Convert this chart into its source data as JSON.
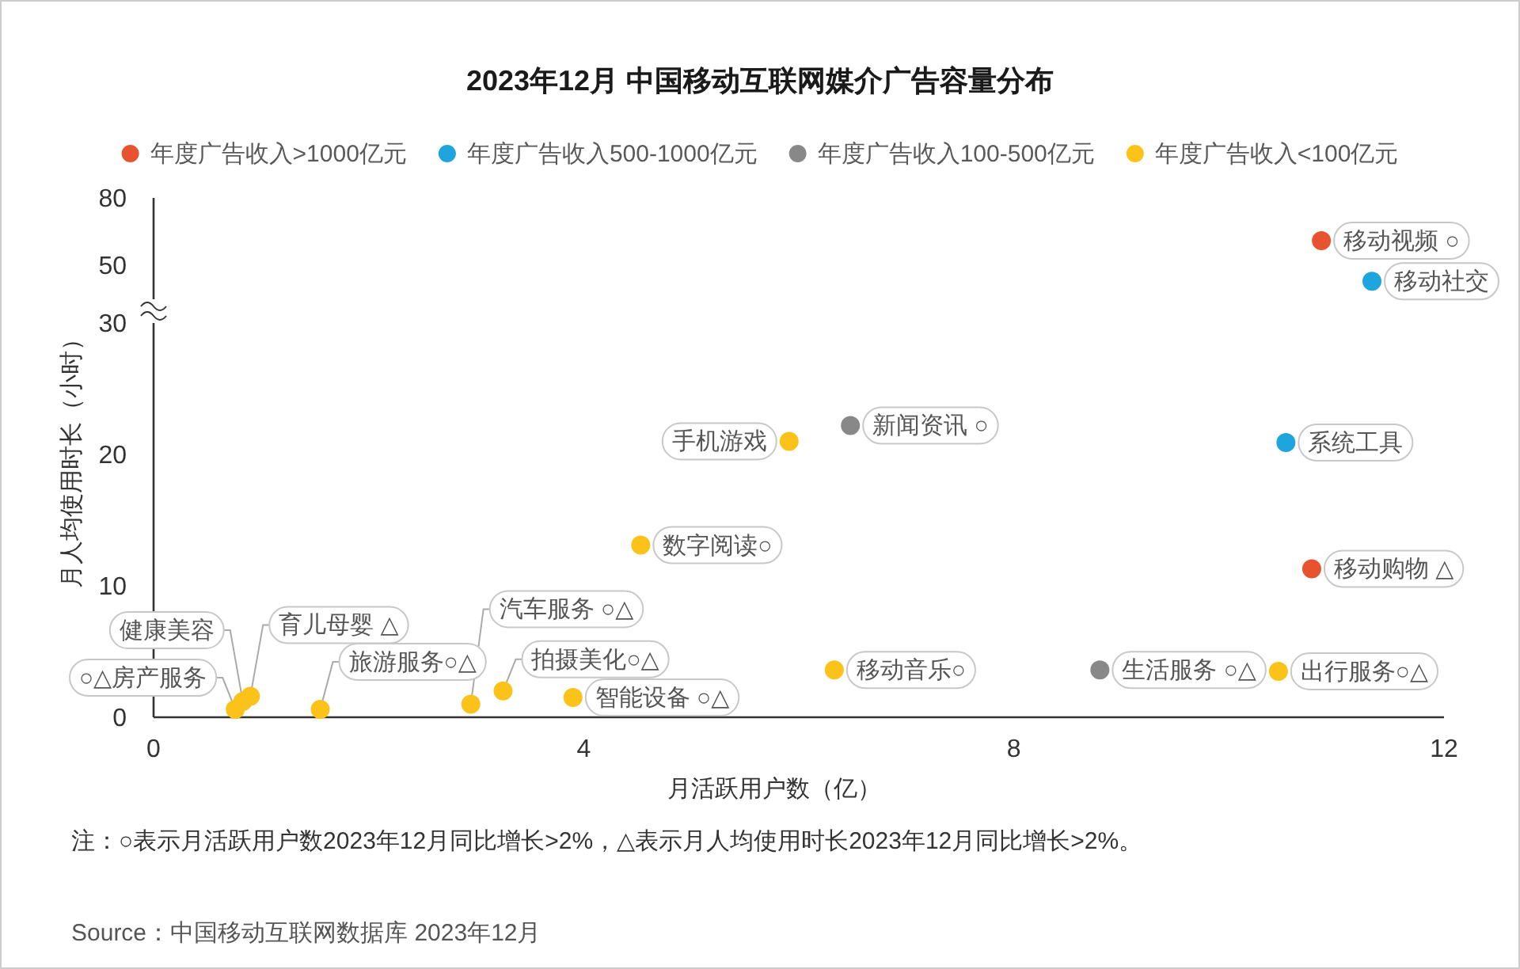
{
  "chart_data": [
    {
      "type": "scatter",
      "title": "2023年12月 中国移动互联网媒介广告容量分布",
      "xlim": [
        0,
        12
      ],
      "ylim": [
        35,
        80
      ],
      "yticks": [
        50,
        80
      ],
      "tick_labels": "y",
      "marker": "circle",
      "series": [
        {
          "color": "#e8532f",
          "x": [
            10.86
          ],
          "values": [
            61
          ],
          "value_labels": [
            "移动视频 ○"
          ]
        },
        {
          "color": "#1ea5dd",
          "x": [
            11.33
          ],
          "values": [
            43
          ],
          "value_labels": [
            "移动社交"
          ]
        }
      ]
    },
    {
      "type": "scatter",
      "xlabel": "月活跃用户数（亿）",
      "ylabel": "月人均使用时长（小时）",
      "xlim": [
        0,
        12
      ],
      "xticks": [
        0,
        4,
        8,
        12
      ],
      "ylim": [
        0,
        30
      ],
      "yticks": [
        0,
        10,
        20,
        30
      ],
      "legend": "top",
      "marker": "circle",
      "series": [
        {
          "name": "年度广告收入>1000亿元",
          "color": "#e8532f",
          "x": [
            10.77
          ],
          "values": [
            11.3
          ],
          "value_labels": [
            "移动购物 △"
          ]
        },
        {
          "name": "年度广告收入500-1000亿元",
          "color": "#1ea5dd",
          "x": [
            10.53
          ],
          "values": [
            20.9
          ],
          "value_labels": [
            "系统工具"
          ]
        },
        {
          "name": "年度广告收入100-500亿元",
          "color": "#888888",
          "x": [
            6.48,
            8.8
          ],
          "values": [
            22.2,
            3.6
          ],
          "value_labels": [
            "新闻资讯 ○",
            "生活服务 ○△"
          ]
        },
        {
          "name": "年度广告收入<100亿元",
          "color": "#fbc21a",
          "x": [
            5.91,
            4.53,
            6.33,
            10.46,
            3.9,
            3.25,
            1.55,
            2.95,
            0.76,
            0.83,
            0.9
          ],
          "values": [
            21.0,
            13.1,
            3.6,
            3.5,
            1.5,
            2.0,
            0.6,
            1.0,
            0.6,
            1.2,
            1.6
          ],
          "value_labels": [
            "手机游戏",
            "数字阅读○",
            "移动音乐○",
            "出行服务○△",
            "智能设备 ○△",
            "拍摄美化○△",
            "旅游服务○△",
            "汽车服务 ○△",
            "○△房产服务",
            "健康美容",
            "育儿母婴 △"
          ]
        }
      ],
      "annotations": [
        "注：○表示月活跃用户数2023年12月同比增长>2%，△表示月人均使用时长2023年12月同比增长>2%。",
        "Source：中国移动互联网数据库 2023年12月"
      ]
    }
  ]
}
